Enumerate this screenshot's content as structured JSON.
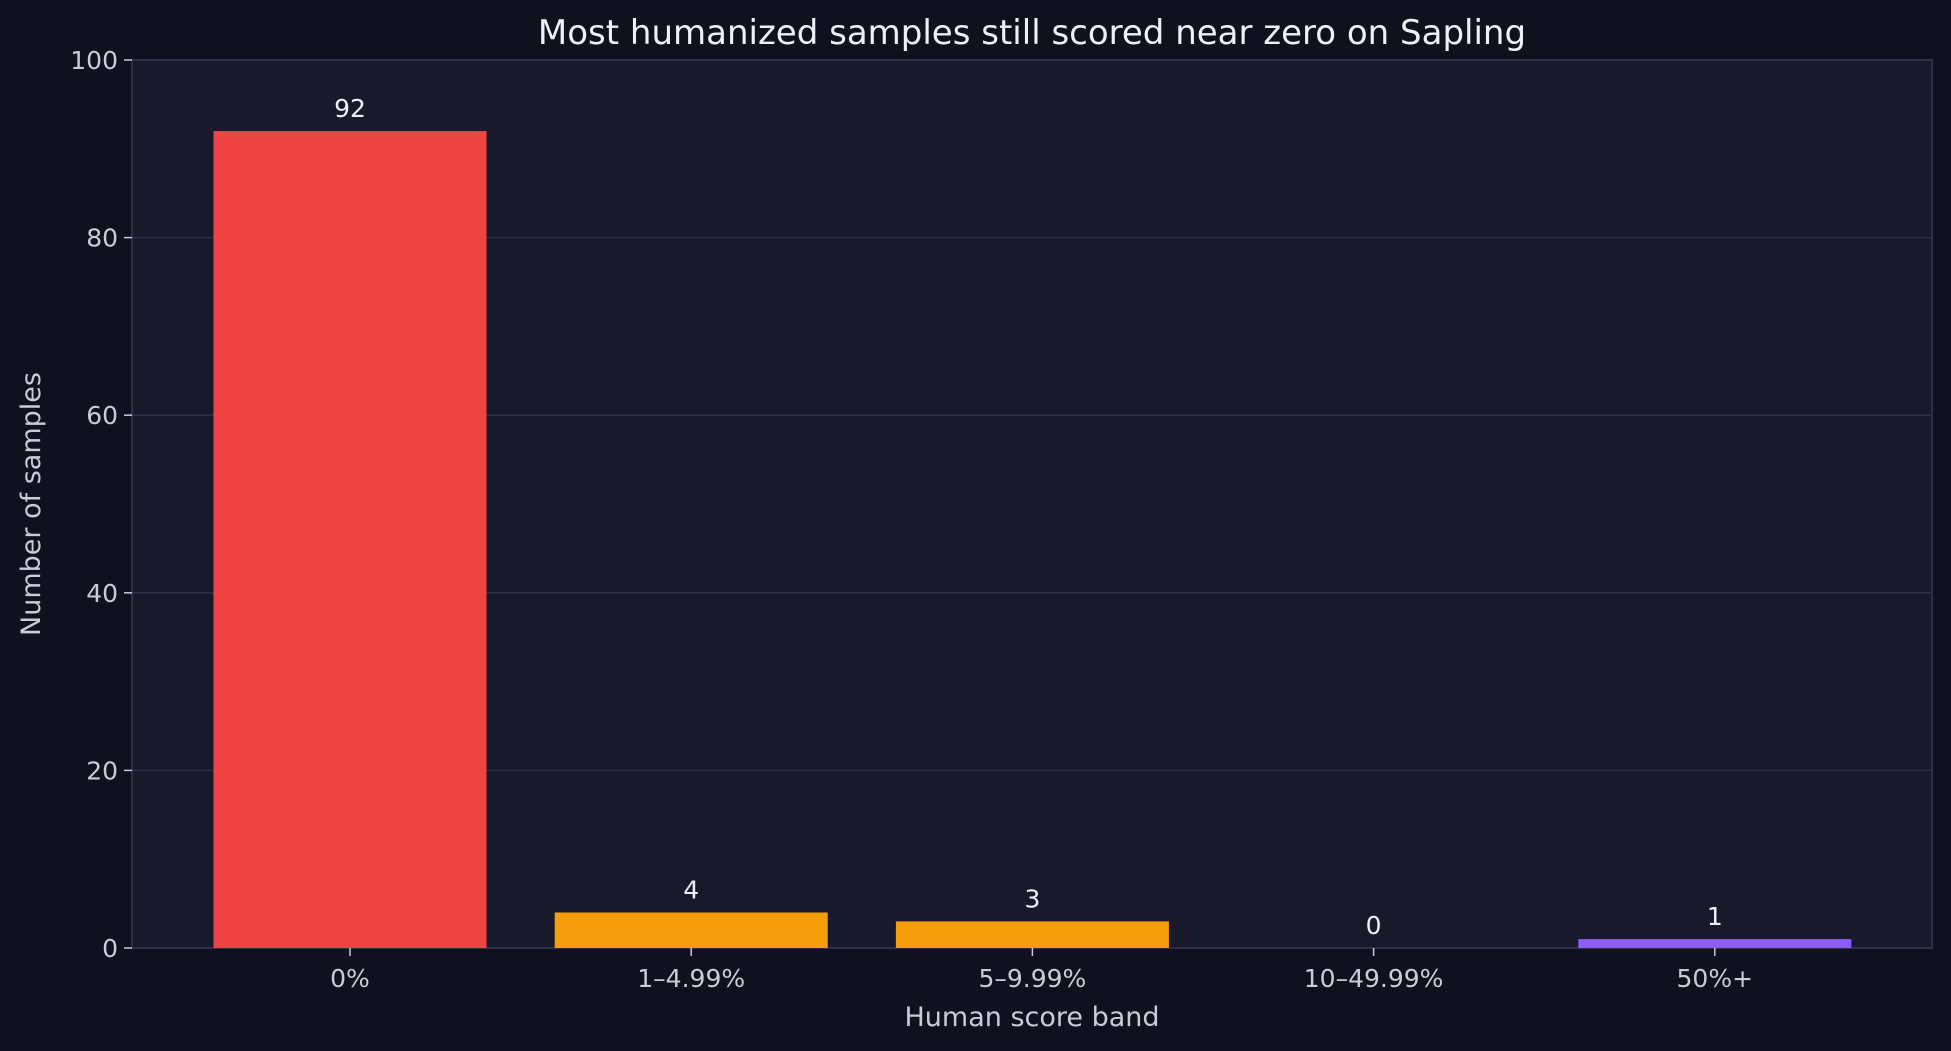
{
  "chart_data": {
    "type": "bar",
    "title": "Most humanized samples still scored near zero on Sapling",
    "xlabel": "Human score band",
    "ylabel": "Number of samples",
    "categories": [
      "0%",
      "1–4.99%",
      "5–9.99%",
      "10–49.99%",
      "50%+"
    ],
    "values": [
      92,
      4,
      3,
      0,
      1
    ],
    "data_labels": [
      "92",
      "4",
      "3",
      "0",
      "1"
    ],
    "colors": [
      "#ef4444",
      "#f59e0b",
      "#f59e0b",
      "#f59e0b",
      "#8b5cf6"
    ],
    "ylim": [
      0,
      100
    ],
    "yticks": [
      "0",
      "20",
      "40",
      "60",
      "80",
      "100"
    ],
    "grid": "horizontal",
    "background": "#0f111e",
    "plot_background": "#181a2b"
  }
}
